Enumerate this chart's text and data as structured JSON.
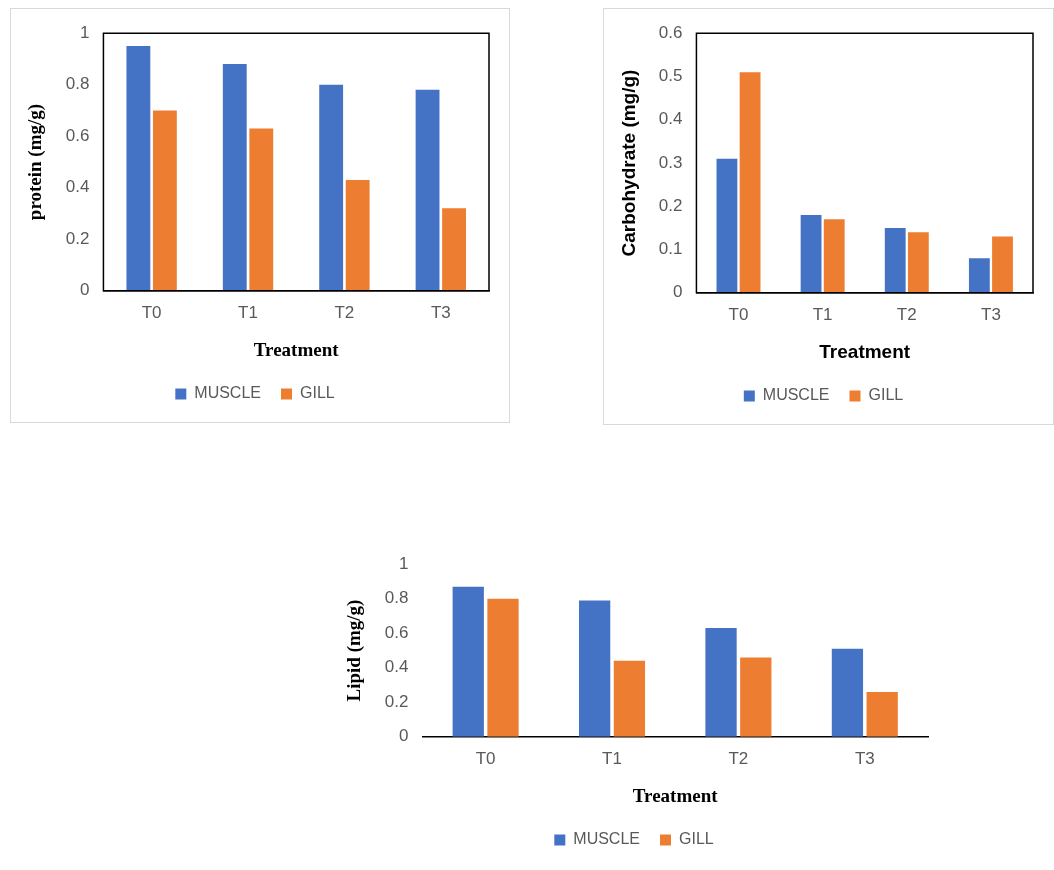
{
  "chart_data": [
    {
      "type": "bar",
      "xlabel": "Treatment",
      "ylabel": "protein (mg/g)",
      "categories": [
        "T0",
        "T1",
        "T2",
        "T3"
      ],
      "series": [
        {
          "name": "MUSCLE",
          "color": "#4472c4",
          "values": [
            0.95,
            0.88,
            0.8,
            0.78
          ]
        },
        {
          "name": "GILL",
          "color": "#ed7d31",
          "values": [
            0.7,
            0.63,
            0.43,
            0.32
          ]
        }
      ],
      "ylim": [
        0,
        1
      ],
      "yticks": [
        0,
        0.2,
        0.4,
        0.6,
        0.8,
        1
      ],
      "grid": false,
      "legend": "bottom"
    },
    {
      "type": "bar",
      "xlabel": "Treatment",
      "ylabel": "Carbohydrate (mg/g)",
      "categories": [
        "T0",
        "T1",
        "T2",
        "T3"
      ],
      "series": [
        {
          "name": "MUSCLE",
          "color": "#4472c4",
          "values": [
            0.31,
            0.18,
            0.15,
            0.08
          ]
        },
        {
          "name": "GILL",
          "color": "#ed7d31",
          "values": [
            0.51,
            0.17,
            0.14,
            0.13
          ]
        }
      ],
      "ylim": [
        0,
        0.6
      ],
      "yticks": [
        0,
        0.1,
        0.2,
        0.3,
        0.4,
        0.5,
        0.6
      ],
      "grid": false,
      "legend": "bottom"
    },
    {
      "type": "bar",
      "xlabel": "Treatment",
      "ylabel": "Lipid (mg/g)",
      "categories": [
        "T0",
        "T1",
        "T2",
        "T3"
      ],
      "series": [
        {
          "name": "MUSCLE",
          "color": "#4472c4",
          "values": [
            0.87,
            0.79,
            0.63,
            0.51
          ]
        },
        {
          "name": "GILL",
          "color": "#ed7d31",
          "values": [
            0.8,
            0.44,
            0.46,
            0.26
          ]
        }
      ],
      "ylim": [
        0,
        1
      ],
      "yticks": [
        0,
        0.2,
        0.4,
        0.6,
        0.8,
        1
      ],
      "grid": false,
      "legend": "bottom"
    }
  ]
}
